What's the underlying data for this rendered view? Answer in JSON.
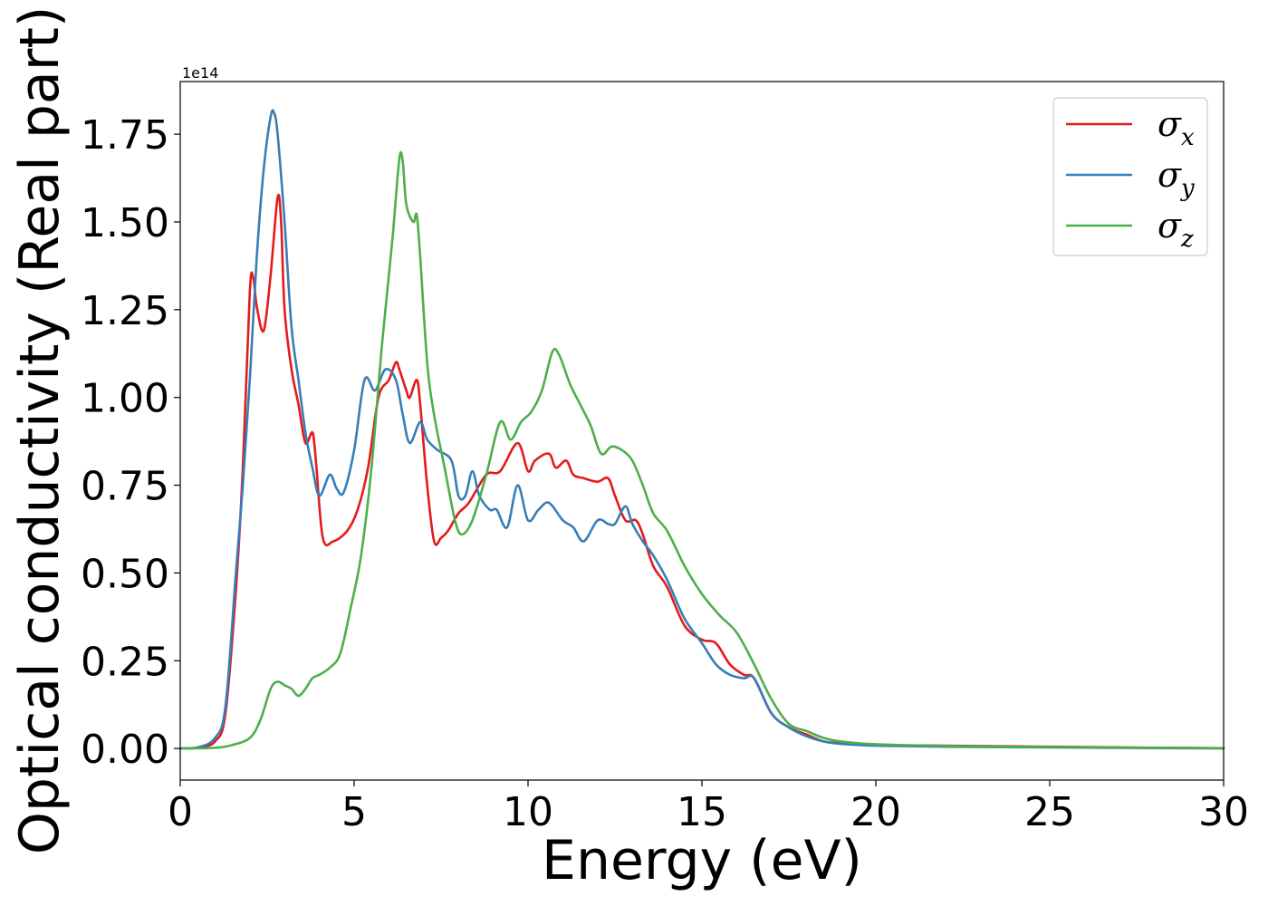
{
  "chart_data": {
    "type": "line",
    "xlabel": "Energy (eV)",
    "ylabel": "Optical conductivity (Real part)",
    "y_offset_label": "1e14",
    "y_scale": 100000000000000.0,
    "xlim": [
      0,
      30
    ],
    "ylim": [
      -0.09,
      1.9
    ],
    "xticks": [
      0,
      5,
      10,
      15,
      20,
      25,
      30
    ],
    "xtick_labels": [
      "0",
      "5",
      "10",
      "15",
      "20",
      "25",
      "30"
    ],
    "yticks": [
      0.0,
      0.25,
      0.5,
      0.75,
      1.0,
      1.25,
      1.5,
      1.75
    ],
    "ytick_labels": [
      "0.00",
      "0.25",
      "0.50",
      "0.75",
      "1.00",
      "1.25",
      "1.50",
      "1.75"
    ],
    "grid": false,
    "legend_position": "top-right",
    "series": [
      {
        "name": "σx",
        "legend_symbol": "σ",
        "legend_sub": "x",
        "color": "#e41a1c",
        "x": [
          0,
          0.5,
          1.0,
          1.3,
          1.6,
          1.8,
          2.0,
          2.1,
          2.2,
          2.4,
          2.6,
          2.8,
          2.9,
          3.0,
          3.2,
          3.4,
          3.6,
          3.8,
          3.9,
          4.1,
          4.4,
          4.8,
          5.1,
          5.4,
          5.7,
          6.0,
          6.2,
          6.3,
          6.5,
          6.6,
          6.8,
          6.9,
          7.1,
          7.3,
          7.5,
          7.7,
          8.0,
          8.3,
          8.8,
          9.2,
          9.7,
          10.0,
          10.2,
          10.6,
          10.8,
          11.1,
          11.3,
          11.6,
          12.0,
          12.3,
          12.5,
          12.8,
          13.1,
          13.3,
          13.6,
          14.0,
          14.5,
          15.0,
          15.4,
          15.8,
          16.2,
          16.5,
          17.0,
          17.5,
          18.0,
          18.5,
          19.0,
          20.0,
          22.0,
          25.0,
          28.0,
          30.0
        ],
        "y": [
          0.0,
          0.003,
          0.02,
          0.1,
          0.45,
          0.8,
          1.3,
          1.34,
          1.26,
          1.19,
          1.35,
          1.57,
          1.5,
          1.25,
          1.08,
          0.98,
          0.87,
          0.9,
          0.82,
          0.6,
          0.59,
          0.62,
          0.68,
          0.8,
          1.0,
          1.05,
          1.1,
          1.08,
          1.02,
          1.0,
          1.05,
          0.98,
          0.75,
          0.59,
          0.6,
          0.62,
          0.67,
          0.7,
          0.78,
          0.79,
          0.87,
          0.79,
          0.82,
          0.84,
          0.8,
          0.82,
          0.78,
          0.77,
          0.76,
          0.77,
          0.72,
          0.65,
          0.65,
          0.61,
          0.52,
          0.46,
          0.35,
          0.31,
          0.3,
          0.24,
          0.21,
          0.2,
          0.1,
          0.06,
          0.04,
          0.02,
          0.015,
          0.01,
          0.008,
          0.005,
          0.002,
          0.001
        ]
      },
      {
        "name": "σy",
        "legend_symbol": "σ",
        "legend_sub": "y",
        "color": "#377eb8",
        "x": [
          0,
          0.5,
          1.0,
          1.3,
          1.6,
          1.8,
          2.0,
          2.2,
          2.4,
          2.6,
          2.7,
          2.8,
          3.0,
          3.2,
          3.4,
          3.6,
          3.8,
          4.0,
          4.3,
          4.5,
          4.7,
          5.0,
          5.3,
          5.6,
          5.9,
          6.2,
          6.4,
          6.6,
          6.9,
          7.1,
          7.4,
          7.8,
          8.0,
          8.2,
          8.4,
          8.6,
          8.9,
          9.1,
          9.4,
          9.7,
          10.0,
          10.3,
          10.6,
          11.0,
          11.3,
          11.6,
          12.0,
          12.3,
          12.5,
          12.8,
          13.0,
          13.3,
          13.6,
          14.0,
          14.5,
          15.0,
          15.4,
          15.8,
          16.2,
          16.5,
          17.0,
          17.5,
          18.0,
          18.5,
          19.0,
          20.0,
          22.0,
          25.0,
          28.0,
          30.0
        ],
        "y": [
          0.0,
          0.003,
          0.03,
          0.12,
          0.5,
          0.75,
          1.05,
          1.4,
          1.65,
          1.8,
          1.81,
          1.75,
          1.5,
          1.2,
          1.05,
          0.9,
          0.8,
          0.72,
          0.78,
          0.74,
          0.73,
          0.85,
          1.05,
          1.02,
          1.08,
          1.05,
          0.95,
          0.87,
          0.93,
          0.88,
          0.85,
          0.82,
          0.72,
          0.72,
          0.79,
          0.72,
          0.68,
          0.68,
          0.63,
          0.75,
          0.65,
          0.68,
          0.7,
          0.65,
          0.63,
          0.59,
          0.65,
          0.64,
          0.64,
          0.69,
          0.64,
          0.59,
          0.55,
          0.48,
          0.37,
          0.3,
          0.24,
          0.21,
          0.2,
          0.2,
          0.1,
          0.06,
          0.035,
          0.02,
          0.013,
          0.008,
          0.005,
          0.003,
          0.001,
          0.0
        ]
      },
      {
        "name": "σz",
        "legend_symbol": "σ",
        "legend_sub": "z",
        "color": "#4daf4a",
        "x": [
          0,
          1.0,
          1.5,
          2.0,
          2.3,
          2.6,
          2.8,
          3.0,
          3.2,
          3.4,
          3.6,
          3.8,
          4.0,
          4.3,
          4.6,
          4.9,
          5.2,
          5.5,
          5.8,
          6.1,
          6.3,
          6.4,
          6.5,
          6.7,
          6.8,
          6.9,
          7.1,
          7.3,
          7.6,
          7.9,
          8.1,
          8.4,
          8.8,
          9.2,
          9.5,
          9.8,
          10.1,
          10.4,
          10.7,
          10.9,
          11.2,
          11.5,
          11.8,
          12.1,
          12.4,
          12.7,
          13.0,
          13.3,
          13.6,
          14.0,
          14.5,
          15.0,
          15.5,
          16.0,
          16.5,
          17.0,
          17.5,
          18.0,
          18.5,
          19.0,
          20.0,
          22.0,
          25.0,
          28.0,
          30.0
        ],
        "y": [
          0.0,
          0.002,
          0.01,
          0.03,
          0.08,
          0.17,
          0.19,
          0.18,
          0.17,
          0.15,
          0.17,
          0.2,
          0.21,
          0.23,
          0.27,
          0.4,
          0.55,
          0.8,
          1.15,
          1.45,
          1.68,
          1.67,
          1.55,
          1.5,
          1.52,
          1.4,
          1.1,
          0.95,
          0.8,
          0.65,
          0.61,
          0.65,
          0.78,
          0.93,
          0.88,
          0.93,
          0.96,
          1.02,
          1.13,
          1.12,
          1.04,
          0.98,
          0.92,
          0.84,
          0.86,
          0.85,
          0.82,
          0.75,
          0.67,
          0.62,
          0.52,
          0.44,
          0.38,
          0.33,
          0.24,
          0.14,
          0.07,
          0.05,
          0.03,
          0.02,
          0.012,
          0.007,
          0.004,
          0.002,
          0.001
        ]
      }
    ]
  }
}
